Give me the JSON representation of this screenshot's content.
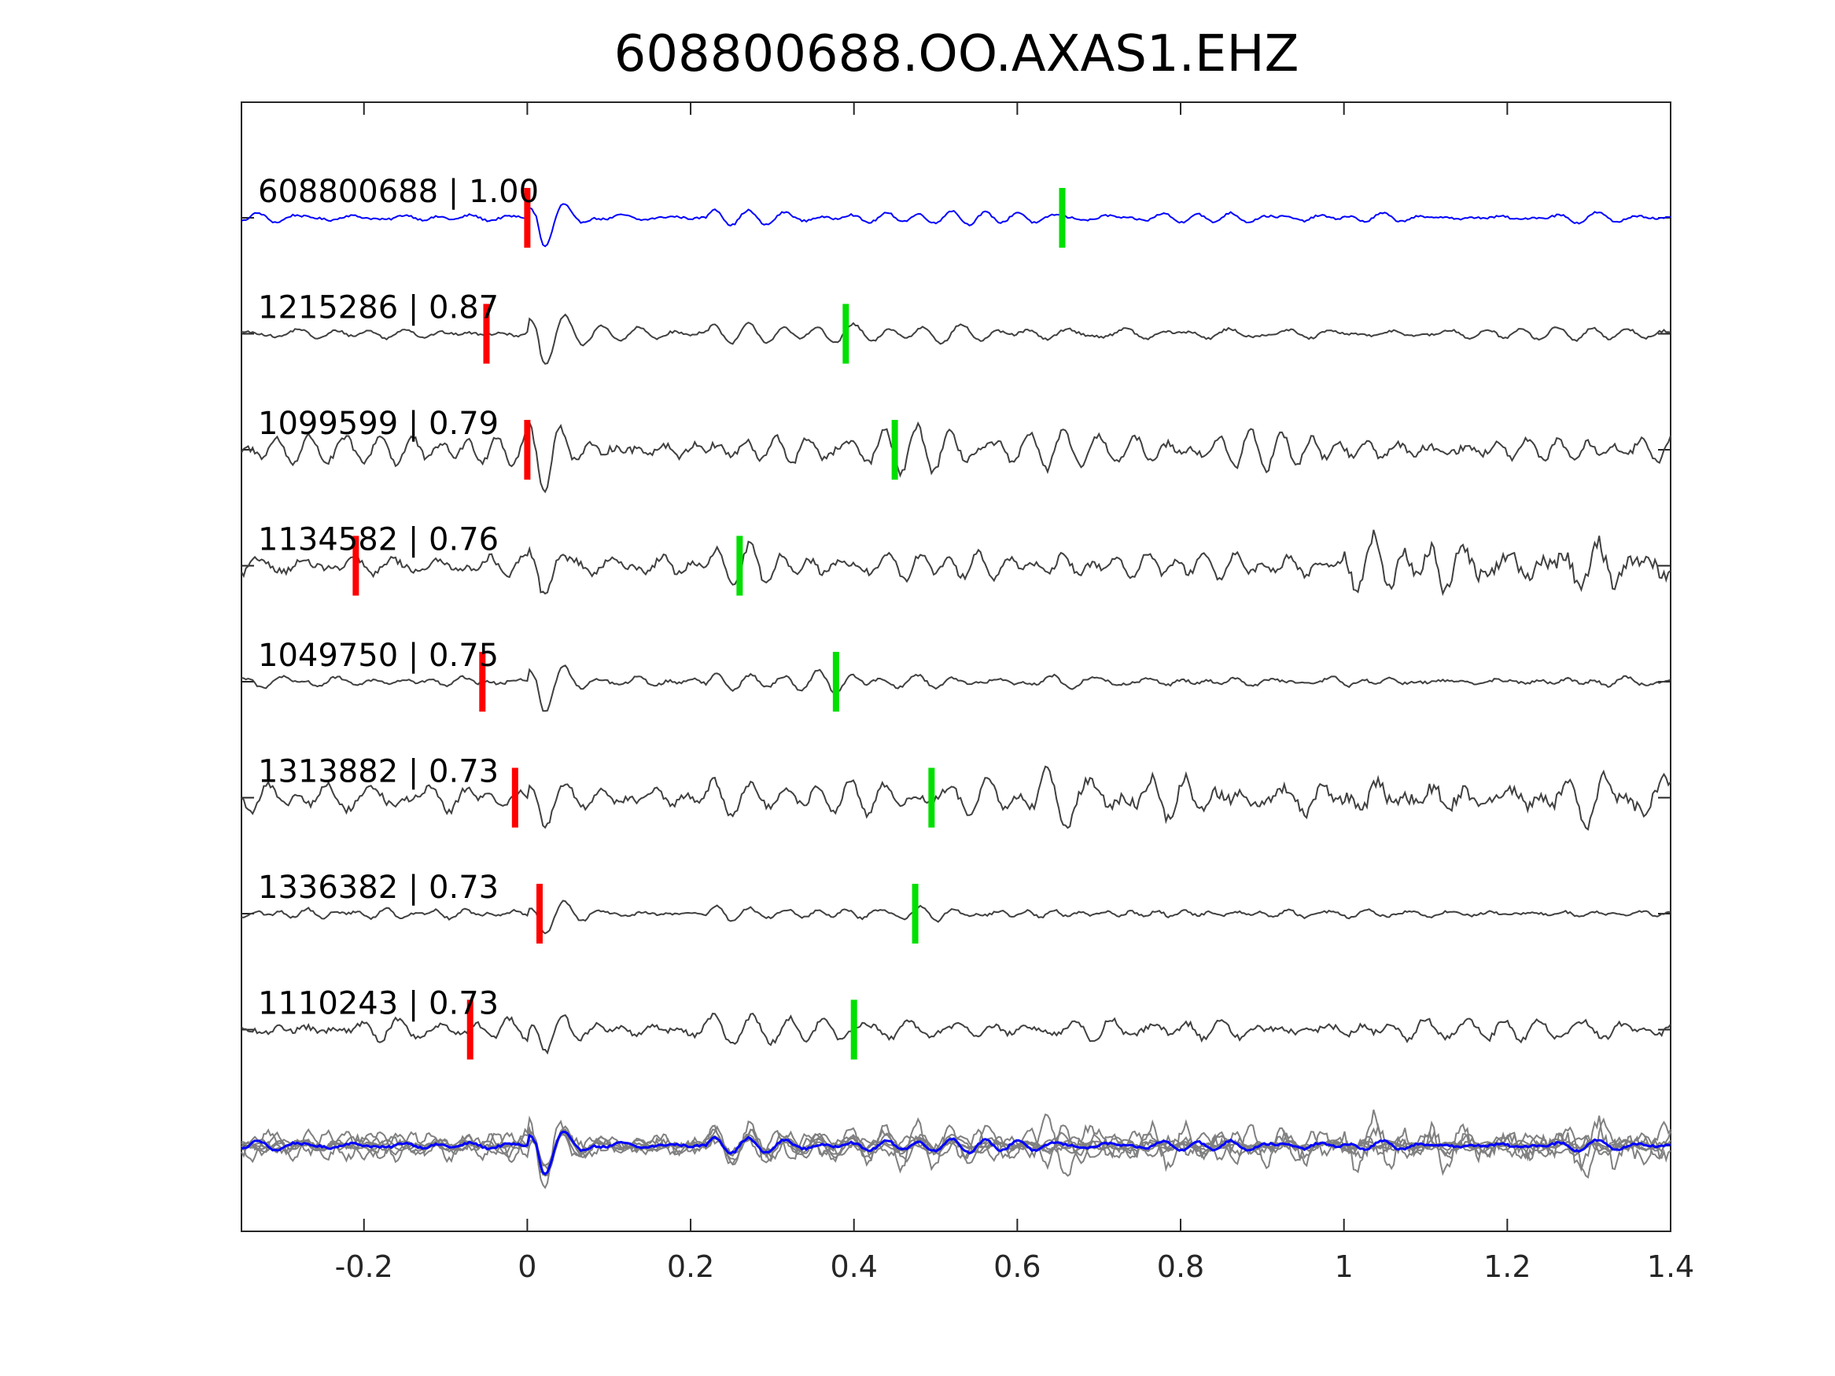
{
  "chart_data": {
    "type": "line",
    "title": "608800688.OO.AXAS1.EHZ",
    "xlabel": "",
    "ylabel": "",
    "xlim": [
      -0.35,
      1.4
    ],
    "xticks": [
      -0.2,
      0,
      0.2,
      0.4,
      0.6,
      0.8,
      1,
      1.2,
      1.4
    ],
    "xtick_labels": [
      "-0.2",
      "0",
      "0.2",
      "0.4",
      "0.6",
      "0.8",
      "1",
      "1.2",
      "1.4"
    ],
    "grid": false,
    "legend": "none",
    "colors": {
      "template": "#0000ff",
      "trace": "#404040",
      "stack": "#808080",
      "p_pick": "#ff0000",
      "s_pick": "#00e000",
      "axes": "#262626"
    },
    "traces": [
      {
        "label": "608800688 | 1.00",
        "id": "608800688",
        "cc": 1.0,
        "p_pick": 0.0,
        "s_pick": 0.655,
        "amp": 0.55,
        "noise": 0.12,
        "burst_start": null,
        "burst_amp": 0,
        "template": true
      },
      {
        "label": "1215286 | 0.87",
        "id": "1215286",
        "cc": 0.87,
        "p_pick": -0.05,
        "s_pick": 0.39,
        "amp": 0.55,
        "noise": 0.14,
        "burst_start": null,
        "burst_amp": 0,
        "template": false
      },
      {
        "label": "1099599 | 0.79",
        "id": "1099599",
        "cc": 0.79,
        "p_pick": 0.0,
        "s_pick": 0.45,
        "amp": 0.55,
        "noise": 0.4,
        "burst_start": null,
        "burst_amp": 0,
        "template": false
      },
      {
        "label": "1134582 | 0.76",
        "id": "1134582",
        "cc": 0.76,
        "p_pick": -0.21,
        "s_pick": 0.26,
        "amp": 0.5,
        "noise": 0.38,
        "burst_start": 1.0,
        "burst_amp": 0.45,
        "template": false
      },
      {
        "label": "1049750 | 0.75",
        "id": "1049750",
        "cc": 0.75,
        "p_pick": -0.055,
        "s_pick": 0.378,
        "amp": 0.55,
        "noise": 0.16,
        "burst_start": null,
        "burst_amp": 0,
        "template": false
      },
      {
        "label": "1313882 | 0.73",
        "id": "1313882",
        "cc": 0.73,
        "p_pick": -0.015,
        "s_pick": 0.495,
        "amp": 0.55,
        "noise": 0.38,
        "burst_start": 0.62,
        "burst_amp": 0.3,
        "template": false
      },
      {
        "label": "1336382 | 0.73",
        "id": "1336382",
        "cc": 0.73,
        "p_pick": 0.015,
        "s_pick": 0.475,
        "amp": 0.4,
        "noise": 0.14,
        "burst_start": null,
        "burst_amp": 0,
        "template": false
      },
      {
        "label": "1110243 | 0.73",
        "id": "1110243",
        "cc": 0.73,
        "p_pick": -0.07,
        "s_pick": 0.4,
        "amp": 0.55,
        "noise": 0.32,
        "burst_start": null,
        "burst_amp": 0,
        "template": false
      }
    ],
    "stack": {
      "overlay_of_all_traces": true
    }
  }
}
